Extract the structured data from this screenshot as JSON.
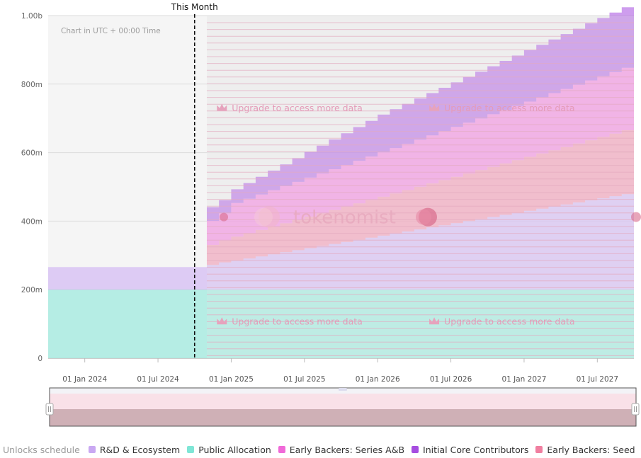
{
  "chart_data": {
    "type": "area",
    "stacked": true,
    "subtitle": "Chart in UTC + 00:00 Time",
    "marker_label": "This Month",
    "marker_date": "2024-10",
    "upgrade_text": "Upgrade to access more data",
    "watermark": "tokenomist",
    "x_range": [
      "2023-10",
      "2027-10"
    ],
    "x_ticks": [
      "01 Jan 2024",
      "01 Jul 2024",
      "01 Jan 2025",
      "01 Jul 2025",
      "01 Jan 2026",
      "01 Jul 2026",
      "01 Jan 2027",
      "01 Jul 2027"
    ],
    "x_tick_dates": [
      "2024-01",
      "2024-07",
      "2025-01",
      "2025-07",
      "2026-01",
      "2026-07",
      "2027-01",
      "2027-07"
    ],
    "y_ticks": [
      "0",
      "200m",
      "400m",
      "600m",
      "800m",
      "1.00b"
    ],
    "y_tick_values": [
      0,
      200,
      400,
      600,
      800,
      1000
    ],
    "ylim": [
      0,
      1000
    ],
    "y_unit": "millions of tokens",
    "legend_title": "Unlocks schedule",
    "series": [
      {
        "name": "Public Allocation",
        "color": "#7fe6d6",
        "values": [
          [
            2023.75,
            200
          ],
          [
            2027.75,
            200
          ]
        ]
      },
      {
        "name": "R&D & Ecosystem",
        "color": "#c9a8f2",
        "values": [
          [
            2023.75,
            66
          ],
          [
            2024.75,
            66
          ],
          [
            2024.83,
            72
          ],
          [
            2024.92,
            80
          ],
          [
            2025.0,
            85
          ],
          [
            2027.75,
            285
          ]
        ]
      },
      {
        "name": "Early Backers: Seed",
        "color": "#f07fa0",
        "values": [
          [
            2023.75,
            0
          ],
          [
            2024.75,
            0
          ],
          [
            2024.83,
            58
          ],
          [
            2024.92,
            64
          ],
          [
            2025.0,
            70
          ],
          [
            2027.75,
            190
          ]
        ]
      },
      {
        "name": "Early Backers: Series A&B",
        "color": "#f06ad8",
        "values": [
          [
            2023.75,
            0
          ],
          [
            2024.75,
            0
          ],
          [
            2024.83,
            70
          ],
          [
            2024.92,
            80
          ],
          [
            2025.0,
            98
          ],
          [
            2027.75,
            185
          ]
        ]
      },
      {
        "name": "Initial Core Contributors",
        "color": "#a64de0",
        "values": [
          [
            2023.75,
            0
          ],
          [
            2024.75,
            0
          ],
          [
            2024.83,
            40
          ],
          [
            2024.92,
            38
          ],
          [
            2025.0,
            40
          ],
          [
            2026.0,
            110
          ],
          [
            2027.75,
            180
          ]
        ]
      }
    ]
  }
}
